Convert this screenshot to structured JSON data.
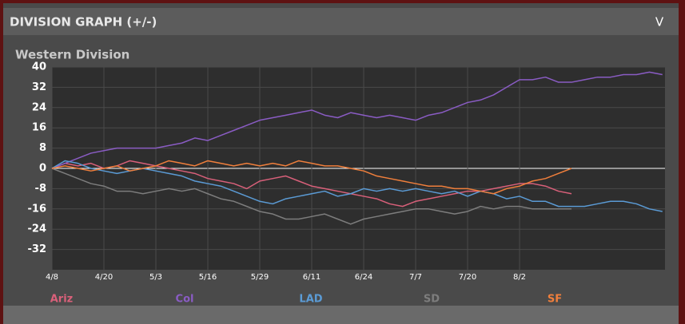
{
  "header": {
    "title": "DIVISION GRAPH (+/-)",
    "toggle": "V"
  },
  "chart_data": {
    "type": "line",
    "title": "Western Division",
    "categories": [
      "4/8",
      null,
      null,
      null,
      "4/20",
      null,
      null,
      null,
      "5/3",
      null,
      null,
      null,
      "5/16",
      null,
      null,
      null,
      "5/29",
      null,
      null,
      null,
      "6/11",
      null,
      null,
      null,
      "6/24",
      null,
      null,
      null,
      "7/7",
      null,
      null,
      null,
      "7/20",
      null,
      null,
      null,
      "8/2",
      null,
      null,
      null,
      null,
      null,
      null,
      null,
      null,
      null,
      null,
      null
    ],
    "series": [
      {
        "name": "Ariz",
        "color": "#d9607a",
        "values": [
          0,
          2,
          1,
          2,
          0,
          1,
          3,
          2,
          1,
          0,
          -1,
          -2,
          -4,
          -5,
          -6,
          -8,
          -5,
          -4,
          -3,
          -5,
          -7,
          -8,
          -9,
          -10,
          -11,
          -12,
          -14,
          -15,
          -13,
          -12,
          -11,
          -10,
          -9,
          -9,
          -8,
          -7,
          -6,
          -6,
          -7,
          -9,
          -10,
          null,
          null,
          null,
          null,
          null,
          null,
          null
        ]
      },
      {
        "name": "Col",
        "color": "#8a5cc4",
        "values": [
          0,
          2,
          4,
          6,
          7,
          8,
          8,
          8,
          8,
          9,
          10,
          12,
          11,
          13,
          15,
          17,
          19,
          20,
          21,
          22,
          23,
          21,
          20,
          22,
          21,
          20,
          21,
          20,
          19,
          21,
          22,
          24,
          26,
          27,
          29,
          32,
          35,
          35,
          36,
          34,
          34,
          35,
          36,
          36,
          37,
          37,
          38,
          37
        ]
      },
      {
        "name": "LAD",
        "color": "#5b9bd5",
        "values": [
          0,
          3,
          2,
          0,
          -1,
          -2,
          -1,
          0,
          -1,
          -2,
          -3,
          -5,
          -6,
          -7,
          -9,
          -11,
          -13,
          -14,
          -12,
          -11,
          -10,
          -9,
          -11,
          -10,
          -8,
          -9,
          -8,
          -9,
          -8,
          -9,
          -10,
          -9,
          -11,
          -9,
          -10,
          -12,
          -11,
          -13,
          -13,
          -15,
          -15,
          -15,
          -14,
          -13,
          -13,
          -14,
          -16,
          -17
        ]
      },
      {
        "name": "SD",
        "color": "#7d7d7d",
        "values": [
          0,
          -2,
          -4,
          -6,
          -7,
          -9,
          -9,
          -10,
          -9,
          -8,
          -9,
          -8,
          -10,
          -12,
          -13,
          -15,
          -17,
          -18,
          -20,
          -20,
          -19,
          -18,
          -20,
          -22,
          -20,
          -19,
          -18,
          -17,
          -16,
          -16,
          -17,
          -18,
          -17,
          -15,
          -16,
          -15,
          -15,
          -16,
          -16,
          -16,
          -16,
          null,
          null,
          null,
          null,
          null,
          null,
          null
        ]
      },
      {
        "name": "SF",
        "color": "#f07f3c",
        "values": [
          0,
          1,
          0,
          -1,
          0,
          1,
          -1,
          0,
          1,
          3,
          2,
          1,
          3,
          2,
          1,
          2,
          1,
          2,
          1,
          3,
          2,
          1,
          1,
          0,
          -1,
          -3,
          -4,
          -5,
          -6,
          -7,
          -7,
          -8,
          -8,
          -9,
          -10,
          -8,
          -7,
          -5,
          -4,
          -2,
          0,
          null,
          null,
          null,
          null,
          null,
          null,
          null
        ]
      }
    ],
    "ylim": [
      -40,
      40
    ],
    "yticks": [
      40,
      32,
      24,
      16,
      8,
      0,
      -8,
      -16,
      -24,
      -32
    ],
    "grid": true
  }
}
